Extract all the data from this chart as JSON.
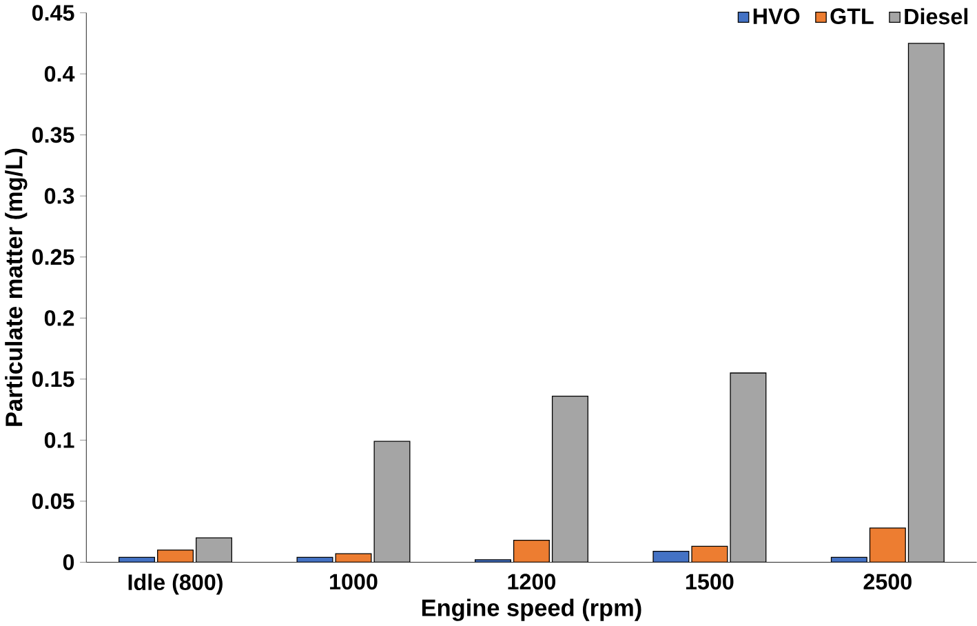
{
  "chart_data": {
    "type": "bar",
    "xlabel": "Engine speed (rpm)",
    "ylabel": "Particulate matter (mg/L)",
    "categories": [
      "Idle (800)",
      "1000",
      "1200",
      "1500",
      "2500"
    ],
    "series": [
      {
        "name": "HVO",
        "color": "#4472c4",
        "values": [
          0.004,
          0.004,
          0.002,
          0.009,
          0.004
        ]
      },
      {
        "name": "GTL",
        "color": "#ed7d31",
        "values": [
          0.01,
          0.007,
          0.018,
          0.013,
          0.028
        ]
      },
      {
        "name": "Diesel",
        "color": "#a5a5a5",
        "values": [
          0.02,
          0.099,
          0.136,
          0.155,
          0.425
        ]
      }
    ],
    "ylim": [
      0,
      0.45
    ],
    "yticks": [
      0,
      0.05,
      0.1,
      0.15,
      0.2,
      0.25,
      0.3,
      0.35,
      0.4,
      0.45
    ],
    "legend": "top right",
    "grid": false
  }
}
